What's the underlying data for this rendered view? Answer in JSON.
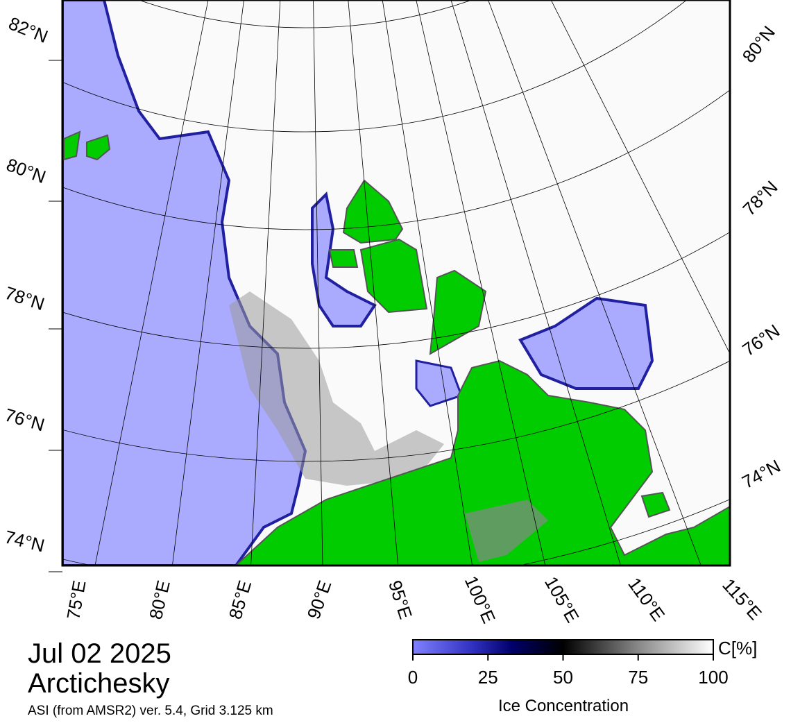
{
  "map": {
    "lat_labels_left": [
      "82°N",
      "80°N",
      "78°N",
      "76°N",
      "74°N"
    ],
    "lat_labels_right": [
      "80°N",
      "78°N",
      "76°N",
      "74°N"
    ],
    "lon_labels": [
      "75°E",
      "80°E",
      "85°E",
      "90°E",
      "95°E",
      "100°E",
      "105°E",
      "110°E",
      "115°E"
    ]
  },
  "date": "Jul 02 2025",
  "region": "Arctichesky",
  "source": "ASI (from AMSR2) ver. 5.4,  Grid 3.125 km",
  "colorbar": {
    "title": "Ice Concentration",
    "unit": "C[%]",
    "lim": [
      0,
      100
    ],
    "ticks": [
      0,
      25,
      50,
      75,
      100
    ]
  }
}
